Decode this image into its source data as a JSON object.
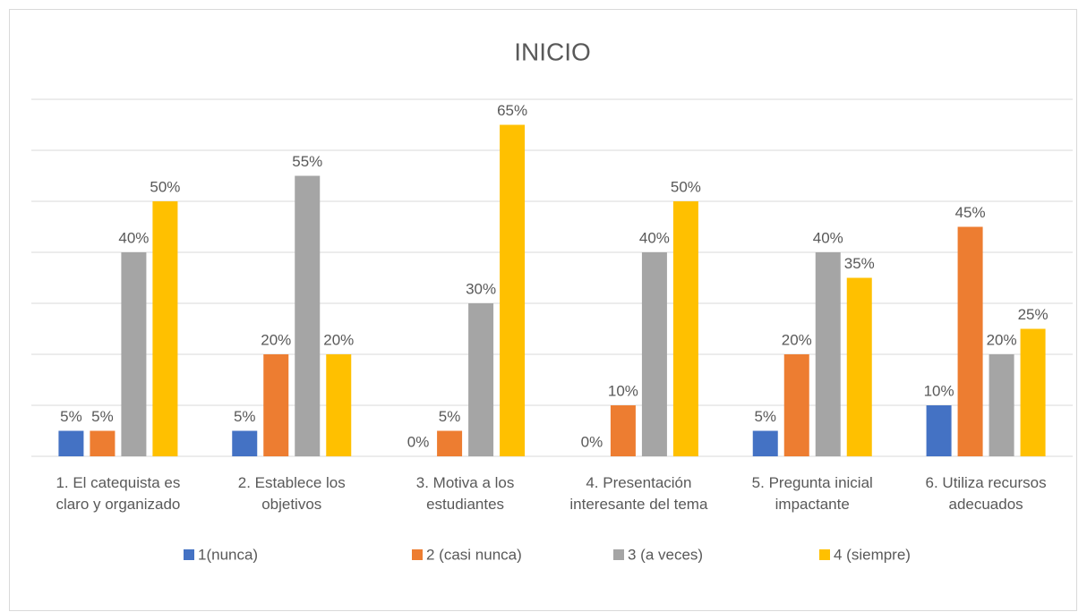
{
  "chart_data": {
    "type": "bar",
    "title": "INICIO",
    "categories": [
      "1. El catequista es claro y organizado",
      "2. Establece los objetivos",
      "3. Motiva a los estudiantes",
      "4. Presentación interesante del tema",
      "5. Pregunta inicial impactante",
      "6. Utiliza recursos adecuados"
    ],
    "series": [
      {
        "name": "1(nunca)",
        "color": "#4472c4",
        "values": [
          5,
          5,
          0,
          0,
          5,
          10
        ],
        "value_labels": [
          "5%",
          "5%",
          "0%",
          "0%",
          "5%",
          "10%"
        ]
      },
      {
        "name": "2 (casi nunca)",
        "color": "#ed7d31",
        "values": [
          5,
          20,
          5,
          10,
          20,
          45
        ],
        "value_labels": [
          "5%",
          "20%",
          "5%",
          "10%",
          "20%",
          "45%"
        ]
      },
      {
        "name": "3 (a veces)",
        "color": "#a5a5a5",
        "values": [
          40,
          55,
          30,
          40,
          40,
          20
        ],
        "value_labels": [
          "40%",
          "55%",
          "30%",
          "40%",
          "40%",
          "20%"
        ]
      },
      {
        "name": "4 (siempre)",
        "color": "#ffc000",
        "values": [
          50,
          20,
          65,
          50,
          35,
          25
        ],
        "value_labels": [
          "50%",
          "20%",
          "65%",
          "50%",
          "35%",
          "25%"
        ]
      }
    ],
    "ylim": [
      0,
      70
    ],
    "yticks": [
      0,
      10,
      20,
      30,
      40,
      50,
      60,
      70
    ],
    "grid": true,
    "legend": "bottom"
  }
}
